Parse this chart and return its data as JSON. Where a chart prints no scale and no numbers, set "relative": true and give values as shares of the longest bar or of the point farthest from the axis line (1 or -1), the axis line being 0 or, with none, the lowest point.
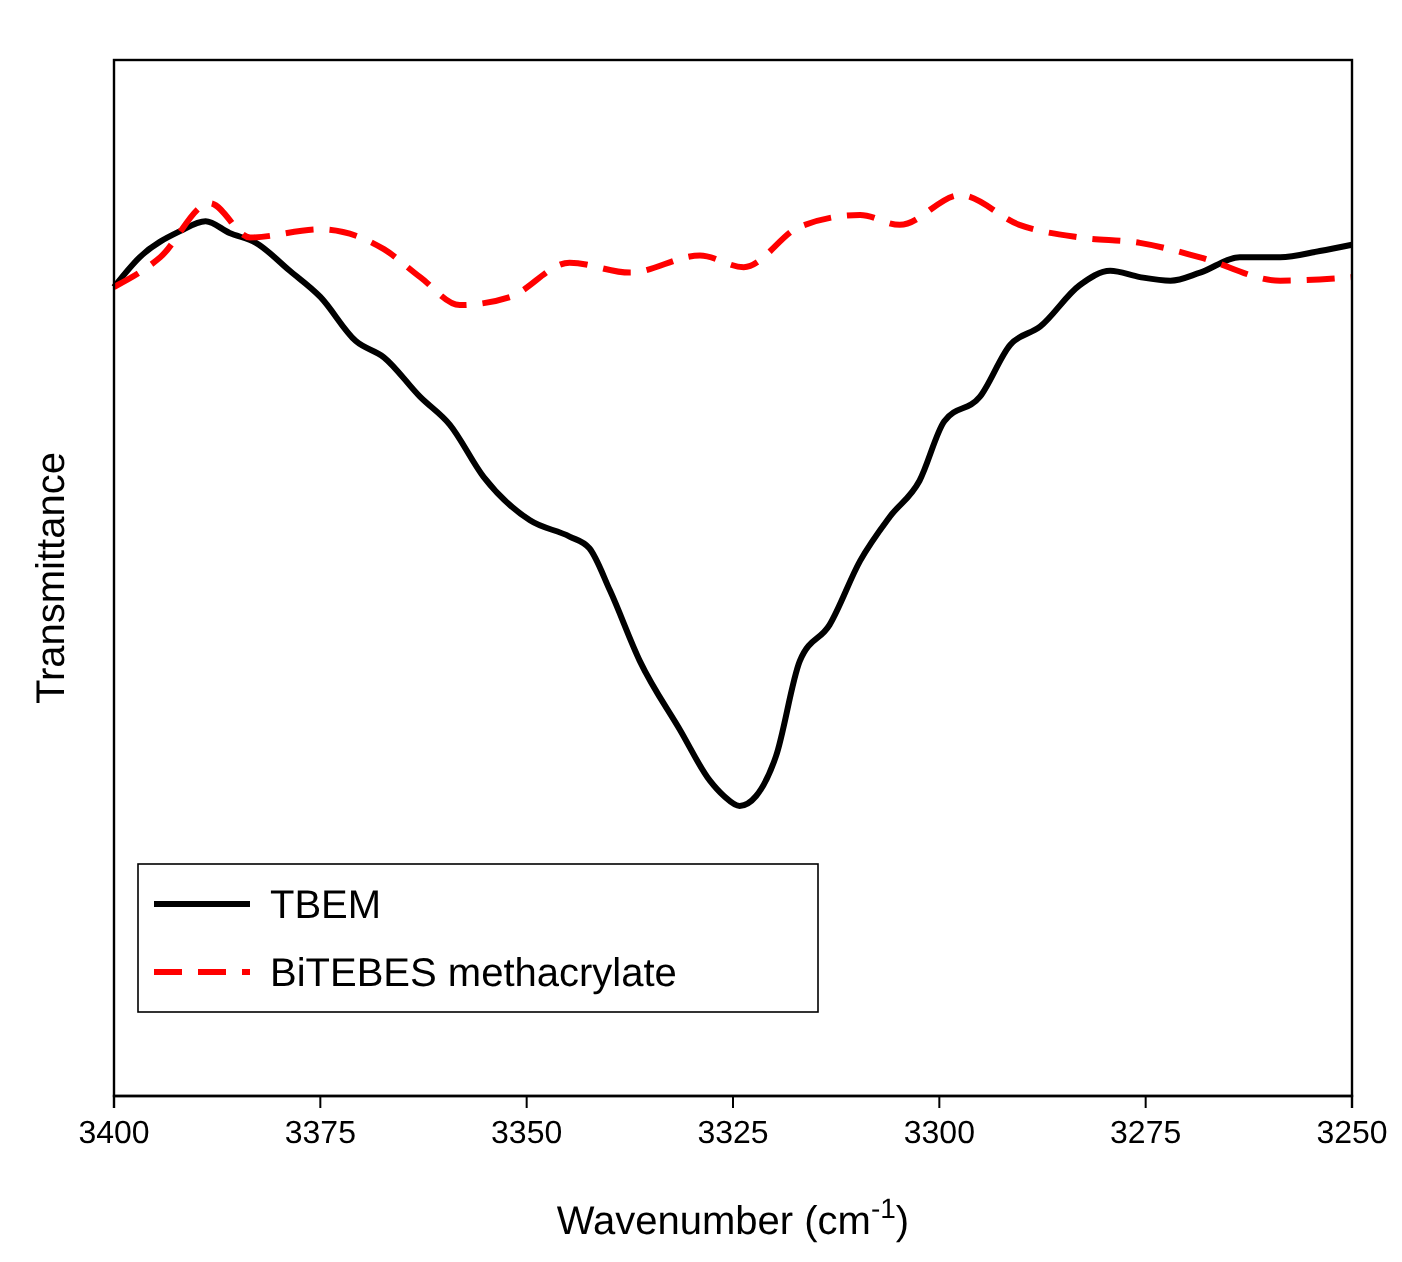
{
  "chart_data": {
    "type": "line",
    "xlabel": "Wavenumber (cm$^{-1}$)",
    "ylabel": "Transmittance",
    "relative": true,
    "xlim": [
      3400,
      3250
    ],
    "xticks": [
      3400,
      3375,
      3350,
      3325,
      3300,
      3275,
      3250
    ],
    "legend": "bottom left",
    "series": [
      {
        "name": "TBEM",
        "color": "#000000",
        "line_style": "solid",
        "x": [
          3400,
          3396.9,
          3392,
          3388.9,
          3386,
          3382.8,
          3378.7,
          3375,
          3370.7,
          3367.3,
          3362.9,
          3359.3,
          3355.2,
          3349.6,
          3344.8,
          3342.4,
          3339.9,
          3336.3,
          3331.4,
          3327.8,
          3326.1,
          3324.2,
          3322.2,
          3319.8,
          3316.9,
          3313.3,
          3309.6,
          3306,
          3302.4,
          3299.4,
          3295.1,
          3291.4,
          3287.8,
          3283,
          3279.3,
          3275.7,
          3272,
          3268.4,
          3263.6,
          3258.7,
          3253.9,
          3250
        ],
        "values": [
          0.898,
          0.931,
          0.96,
          0.971,
          0.958,
          0.947,
          0.916,
          0.887,
          0.838,
          0.82,
          0.776,
          0.745,
          0.687,
          0.639,
          0.621,
          0.608,
          0.561,
          0.483,
          0.406,
          0.35,
          0.333,
          0.322,
          0.333,
          0.377,
          0.483,
          0.523,
          0.594,
          0.643,
          0.683,
          0.749,
          0.776,
          0.834,
          0.854,
          0.9,
          0.916,
          0.909,
          0.905,
          0.914,
          0.931,
          0.931,
          0.938,
          0.945
        ]
      },
      {
        "name": "BiTEBES methacrylate",
        "color": "#ff0000",
        "line_style": "dashed",
        "x": [
          3400,
          3394.4,
          3388.4,
          3383.5,
          3375,
          3367.3,
          3362.9,
          3358.1,
          3352,
          3344.8,
          3337.5,
          3329,
          3323.7,
          3316.9,
          3309.6,
          3304.8,
          3297.5,
          3290.3,
          3283,
          3275.7,
          3268.4,
          3258.7,
          3250
        ],
        "values": [
          0.898,
          0.931,
          0.991,
          0.953,
          0.962,
          0.94,
          0.909,
          0.878,
          0.887,
          0.925,
          0.914,
          0.933,
          0.92,
          0.965,
          0.978,
          0.967,
          1,
          0.967,
          0.953,
          0.947,
          0.931,
          0.905,
          0.909
        ]
      }
    ]
  }
}
